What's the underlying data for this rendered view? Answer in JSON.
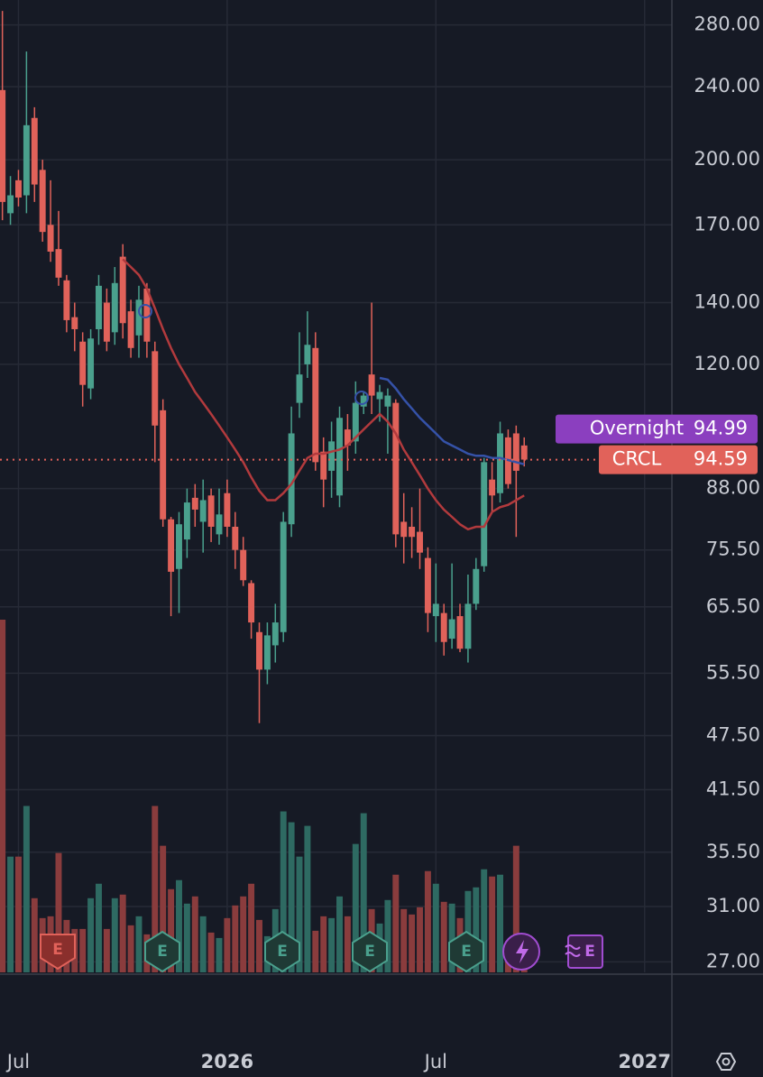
{
  "chart_data": {
    "type": "candlestick",
    "log_scale": true,
    "grid": true,
    "up_color": "#4aa08d",
    "down_color": "#e1625a",
    "volume_up_color": "#2e6a62",
    "volume_down_color": "#8a3c3d",
    "open": [
      238,
      175,
      190,
      183,
      222,
      195,
      170,
      160,
      148,
      135,
      127,
      113,
      131,
      140,
      130,
      157,
      137,
      129,
      145,
      124,
      107,
      81.5,
      72,
      77.5,
      86,
      81,
      86.5,
      78.5,
      87,
      80,
      75.5,
      69.5,
      61.5,
      56,
      59.5,
      61.5,
      80.5,
      109,
      120,
      125,
      96.5,
      92,
      86.5,
      102,
      99,
      108,
      117,
      110,
      108,
      109,
      81,
      80,
      79,
      74,
      64,
      64.5,
      60.5,
      64,
      59,
      66,
      72.5,
      90,
      87,
      100,
      101,
      98
    ],
    "high": [
      290,
      192,
      195,
      262,
      228,
      200,
      190,
      176,
      150,
      140,
      130,
      131,
      150,
      145,
      153,
      162,
      141,
      146,
      147,
      127,
      110,
      82,
      83,
      88,
      89,
      90,
      88,
      88,
      90,
      83,
      78,
      70,
      63,
      63,
      66,
      83,
      108,
      130,
      137,
      130,
      100,
      104,
      108,
      106,
      115,
      112,
      140,
      114,
      113,
      110,
      87,
      84,
      88,
      76,
      73,
      66,
      73,
      66,
      71,
      74,
      95,
      94,
      104,
      102,
      103,
      100
    ],
    "low": [
      172,
      170,
      178,
      175,
      180,
      163,
      155,
      146,
      130,
      124,
      108,
      110,
      126,
      124,
      126,
      128,
      122,
      122,
      122,
      94,
      80,
      64,
      64.5,
      74,
      80,
      75,
      77,
      76.5,
      78,
      72,
      69,
      60.5,
      49,
      54,
      57,
      60,
      78,
      105,
      116,
      92,
      84,
      86,
      84,
      92,
      96,
      106,
      106,
      104,
      96,
      76,
      73,
      74,
      72,
      61.5,
      60,
      58,
      59,
      58.5,
      57,
      65,
      71.5,
      83,
      85,
      88,
      78,
      93
    ],
    "close": [
      180,
      183,
      182,
      218,
      188,
      167,
      159,
      149,
      134,
      131,
      114,
      128,
      146,
      127,
      147,
      133,
      125,
      141,
      127,
      103,
      81.5,
      71.5,
      80.5,
      85,
      83.5,
      85.5,
      80,
      82.5,
      80,
      75.5,
      70,
      63,
      56,
      61,
      63,
      81,
      101,
      117,
      126,
      94,
      90,
      99,
      105,
      98,
      109,
      111,
      111,
      112,
      111,
      78.5,
      78,
      78,
      75,
      64.5,
      66,
      60,
      63.5,
      59,
      66,
      72,
      94,
      86.5,
      101,
      89,
      92,
      94.6
    ],
    "volume": [
      390,
      128,
      128,
      184,
      82,
      60,
      62,
      132,
      58,
      48,
      48,
      82,
      98,
      48,
      82,
      86,
      52,
      62,
      42,
      184,
      140,
      92,
      102,
      76,
      84,
      62,
      44,
      38,
      60,
      74,
      84,
      98,
      58,
      40,
      70,
      178,
      166,
      128,
      162,
      46,
      62,
      60,
      84,
      62,
      142,
      176,
      70,
      54,
      80,
      108,
      70,
      64,
      72,
      112,
      98,
      78,
      76,
      60,
      90,
      94,
      114,
      106,
      108,
      24,
      140,
      20
    ],
    "moving_averages": [
      {
        "color": "#b23a3d",
        "values": [
          null,
          null,
          null,
          null,
          null,
          null,
          null,
          null,
          null,
          null,
          null,
          null,
          null,
          null,
          null,
          156,
          153,
          150,
          145,
          138,
          131,
          125,
          120,
          116,
          112,
          109,
          106,
          103,
          100,
          97,
          94,
          90.5,
          87.5,
          85.5,
          85.5,
          87,
          89,
          92,
          95,
          96,
          96,
          96.5,
          97,
          98,
          100,
          102,
          104,
          106,
          104,
          101,
          97,
          94,
          91,
          88,
          85.5,
          83.5,
          82,
          80.5,
          79.5,
          80,
          80,
          83,
          84,
          84.5,
          85.5,
          86.5
        ]
      },
      {
        "color": "#3552a8",
        "values": [
          null,
          null,
          null,
          null,
          null,
          null,
          null,
          null,
          null,
          null,
          null,
          null,
          null,
          null,
          null,
          null,
          null,
          null,
          null,
          null,
          null,
          null,
          null,
          null,
          null,
          null,
          null,
          null,
          null,
          null,
          null,
          null,
          null,
          null,
          null,
          null,
          null,
          null,
          null,
          null,
          null,
          null,
          null,
          null,
          null,
          null,
          null,
          116,
          115.5,
          113,
          110,
          107.5,
          105,
          103,
          101,
          99,
          98,
          97,
          96,
          95.5,
          95.5,
          95,
          95,
          94.5,
          94,
          93.5
        ]
      }
    ],
    "ylim": [
      26.3,
      298
    ],
    "yticks": [
      {
        "value": 280,
        "label": "280.00"
      },
      {
        "value": 240,
        "label": "240.00"
      },
      {
        "value": 200,
        "label": "200.00"
      },
      {
        "value": 170,
        "label": "170.00"
      },
      {
        "value": 140,
        "label": "140.00"
      },
      {
        "value": 120,
        "label": "120.00"
      },
      {
        "value": 88,
        "label": "88.00"
      },
      {
        "value": 75.5,
        "label": "75.50"
      },
      {
        "value": 65.5,
        "label": "65.50"
      },
      {
        "value": 55.5,
        "label": "55.50"
      },
      {
        "value": 47.5,
        "label": "47.50"
      },
      {
        "value": 41.5,
        "label": "41.50"
      },
      {
        "value": 35.5,
        "label": "35.50"
      },
      {
        "value": 31,
        "label": "31.00"
      },
      {
        "value": 27,
        "label": "27.00"
      }
    ],
    "xlim": [
      -0.3,
      83.4
    ],
    "xticks": [
      {
        "value": 2,
        "label": "Jul"
      },
      {
        "value": 28,
        "label": "2026"
      },
      {
        "value": 54,
        "label": "Jul"
      },
      {
        "value": 80,
        "label": "2027"
      }
    ],
    "price_labels": [
      {
        "name": "Overnight",
        "value": 94.99,
        "color": "#8b3fbf"
      },
      {
        "name": "CRCL",
        "value": 94.59,
        "color": "#e1625a"
      }
    ],
    "events": [
      "E",
      "E",
      "E",
      "E",
      "E",
      "E"
    ]
  }
}
